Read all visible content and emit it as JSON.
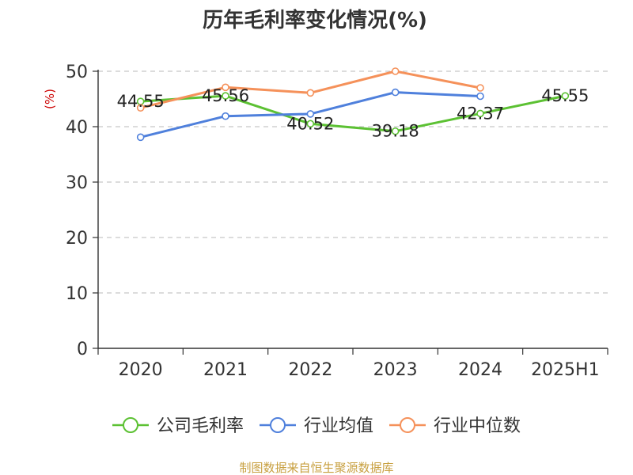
{
  "chart_data": {
    "type": "line",
    "title": "历年毛利率变化情况(%)",
    "ylabel": "(%)",
    "xlabel": "",
    "categories": [
      "2020",
      "2021",
      "2022",
      "2023",
      "2024",
      "2025H1"
    ],
    "ylim": [
      0,
      50
    ],
    "yticks": [
      "0",
      "10",
      "20",
      "30",
      "40",
      "50"
    ],
    "grid": true,
    "legend_position": "bottom",
    "series": [
      {
        "name": "公司毛利率",
        "color": "#5cc133",
        "values": [
          44.55,
          45.56,
          40.52,
          39.18,
          42.37,
          45.55
        ],
        "labels": [
          "44.55",
          "45.56",
          "40.52",
          "39.18",
          "42.37",
          "45.55"
        ]
      },
      {
        "name": "行业均值",
        "color": "#4f80dc",
        "values": [
          38.1,
          41.9,
          42.3,
          46.2,
          45.5,
          null
        ]
      },
      {
        "name": "行业中位数",
        "color": "#f5915a",
        "values": [
          43.4,
          47.1,
          46.1,
          50.0,
          47.0,
          null
        ]
      }
    ],
    "source": "制图数据来自恒生聚源数据库"
  }
}
